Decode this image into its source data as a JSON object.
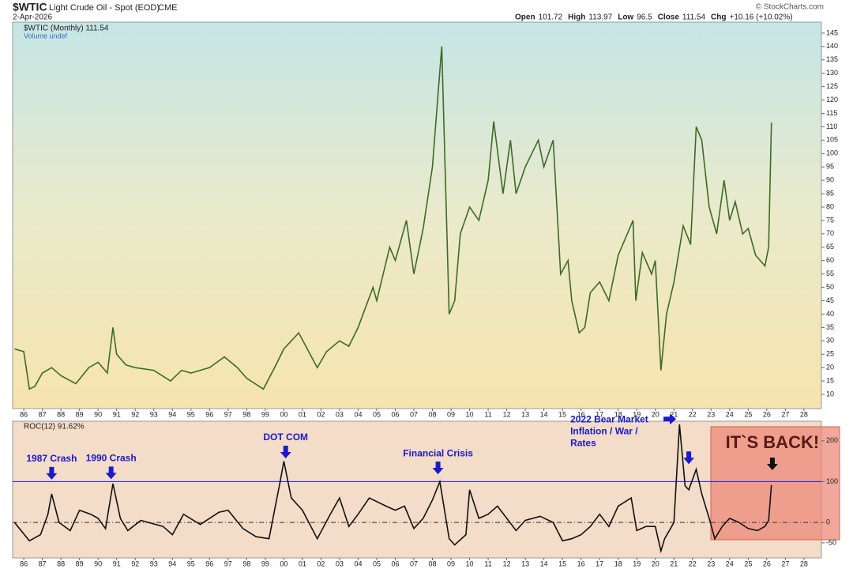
{
  "chart_data": [
    {
      "type": "line",
      "title": "$WTIC",
      "subtitle": "Light Crude Oil - Spot (EOD)",
      "exchange": "CME",
      "date": "2-Apr-2026",
      "source": "© StockCharts.com",
      "quote": [
        {
          "label": "Open",
          "value": 101.72
        },
        {
          "label": "High",
          "value": 113.97
        },
        {
          "label": "Low",
          "value": 96.5
        },
        {
          "label": "Close",
          "value": 111.54
        },
        {
          "label": "Chg",
          "value": "+10.16 (+10.02%)"
        }
      ],
      "legend": [
        "$WTIC (Monthly) 111.54",
        "Volume undef"
      ],
      "color": "#3d6b25",
      "x": [
        1985.5,
        1986.0,
        1986.3,
        1986.6,
        1987.0,
        1987.5,
        1988.0,
        1988.8,
        1989.5,
        1990.0,
        1990.5,
        1990.8,
        1991.0,
        1991.5,
        1992.0,
        1993.0,
        1993.9,
        1994.5,
        1995.0,
        1996.0,
        1996.8,
        1997.5,
        1998.0,
        1998.9,
        1999.5,
        2000.0,
        2000.8,
        2001.8,
        2002.3,
        2003.0,
        2003.5,
        2004.0,
        2004.8,
        2005.0,
        2005.7,
        2006.0,
        2006.6,
        2007.0,
        2007.5,
        2008.0,
        2008.5,
        2008.9,
        2009.2,
        2009.5,
        2010.0,
        2010.5,
        2011.0,
        2011.3,
        2011.8,
        2012.2,
        2012.5,
        2013.0,
        2013.7,
        2014.0,
        2014.5,
        2014.9,
        2015.3,
        2015.5,
        2015.9,
        2016.2,
        2016.5,
        2017.0,
        2017.5,
        2018.0,
        2018.8,
        2018.95,
        2019.3,
        2019.8,
        2020.0,
        2020.3,
        2020.6,
        2021.0,
        2021.5,
        2021.9,
        2022.2,
        2022.5,
        2022.9,
        2023.3,
        2023.7,
        2024.0,
        2024.3,
        2024.7,
        2025.0,
        2025.4,
        2025.9,
        2026.1,
        2026.25
      ],
      "values": [
        27,
        26,
        12,
        13,
        18,
        20,
        17,
        14,
        20,
        22,
        18,
        35,
        25,
        21,
        20,
        19,
        15,
        19,
        18,
        20,
        24,
        20,
        16,
        12,
        20,
        27,
        33,
        20,
        26,
        30,
        28,
        35,
        50,
        45,
        65,
        60,
        75,
        55,
        72,
        95,
        140,
        40,
        45,
        70,
        80,
        75,
        90,
        112,
        85,
        105,
        85,
        95,
        105,
        95,
        105,
        55,
        60,
        45,
        33,
        35,
        48,
        52,
        45,
        62,
        75,
        45,
        63,
        55,
        60,
        19,
        40,
        52,
        73,
        66,
        110,
        105,
        80,
        70,
        90,
        75,
        82,
        70,
        72,
        62,
        58,
        65,
        111.54
      ],
      "xlim": [
        1985.4,
        2028.94
      ],
      "ylim": [
        4.7,
        149.1
      ],
      "yticks": [
        10,
        15,
        20,
        25,
        30,
        35,
        40,
        45,
        50,
        55,
        60,
        65,
        70,
        75,
        80,
        85,
        90,
        95,
        100,
        105,
        110,
        115,
        120,
        125,
        130,
        135,
        140,
        145
      ],
      "xticks": [
        {
          "value": 1986,
          "label": "86"
        },
        {
          "value": 1987,
          "label": "87"
        },
        {
          "value": 1988,
          "label": "88"
        },
        {
          "value": 1989,
          "label": "89"
        },
        {
          "value": 1990,
          "label": "90"
        },
        {
          "value": 1991,
          "label": "91"
        },
        {
          "value": 1992,
          "label": "92"
        },
        {
          "value": 1993,
          "label": "93"
        },
        {
          "value": 1994,
          "label": "94"
        },
        {
          "value": 1995,
          "label": "95"
        },
        {
          "value": 1996,
          "label": "96"
        },
        {
          "value": 1997,
          "label": "97"
        },
        {
          "value": 1998,
          "label": "98"
        },
        {
          "value": 1999,
          "label": "99"
        },
        {
          "value": 2000,
          "label": "00"
        },
        {
          "value": 2001,
          "label": "01"
        },
        {
          "value": 2002,
          "label": "02"
        },
        {
          "value": 2003,
          "label": "03"
        },
        {
          "value": 2004,
          "label": "04"
        },
        {
          "value": 2005,
          "label": "05"
        },
        {
          "value": 2006,
          "label": "06"
        },
        {
          "value": 2007,
          "label": "07"
        },
        {
          "value": 2008,
          "label": "08"
        },
        {
          "value": 2009,
          "label": "09"
        },
        {
          "value": 2010,
          "label": "10"
        },
        {
          "value": 2011,
          "label": "11"
        },
        {
          "value": 2012,
          "label": "12"
        },
        {
          "value": 2013,
          "label": "13"
        },
        {
          "value": 2014,
          "label": "14"
        },
        {
          "value": 2015,
          "label": "15"
        },
        {
          "value": 2016,
          "label": "16"
        },
        {
          "value": 2017,
          "label": "17"
        },
        {
          "value": 2018,
          "label": "18"
        },
        {
          "value": 2019,
          "label": "19"
        },
        {
          "value": 2020,
          "label": "20"
        },
        {
          "value": 2021,
          "label": "21"
        },
        {
          "value": 2022,
          "label": "22"
        },
        {
          "value": 2023,
          "label": "23"
        },
        {
          "value": 2024,
          "label": "24"
        },
        {
          "value": 2025,
          "label": "25"
        },
        {
          "value": 2026,
          "label": "26"
        },
        {
          "value": 2027,
          "label": "27"
        },
        {
          "value": 2028,
          "label": "28"
        }
      ]
    },
    {
      "type": "line",
      "legend": [
        "ROC(12) 91.62%"
      ],
      "color": "#111111",
      "x": [
        1985.5,
        1986.3,
        1986.9,
        1987.3,
        1987.5,
        1987.9,
        1988.5,
        1989.0,
        1989.6,
        1990.0,
        1990.4,
        1990.8,
        1991.2,
        1991.6,
        1992.3,
        1993.5,
        1994.0,
        1994.6,
        1995.5,
        1996.5,
        1997.0,
        1997.8,
        1998.5,
        1999.2,
        1999.8,
        2000.0,
        2000.4,
        2001.0,
        2001.8,
        2002.5,
        2003.0,
        2003.5,
        2004.0,
        2004.6,
        2005.5,
        2006.0,
        2006.5,
        2007.0,
        2007.5,
        2008.0,
        2008.4,
        2008.9,
        2009.2,
        2009.8,
        2010.0,
        2010.5,
        2011.0,
        2011.5,
        2012.0,
        2012.5,
        2013.0,
        2013.8,
        2014.5,
        2015.0,
        2015.5,
        2016.0,
        2016.5,
        2017.0,
        2017.5,
        2018.0,
        2018.7,
        2019.0,
        2019.5,
        2020.0,
        2020.3,
        2020.5,
        2021.0,
        2021.3,
        2021.6,
        2021.8,
        2022.2,
        2022.5,
        2022.9,
        2023.2,
        2023.6,
        2024.0,
        2024.5,
        2025.0,
        2025.5,
        2025.9,
        2026.1,
        2026.25
      ],
      "values": [
        0,
        -45,
        -30,
        20,
        70,
        0,
        -20,
        30,
        20,
        10,
        -15,
        95,
        10,
        -20,
        5,
        -10,
        -30,
        20,
        -5,
        25,
        30,
        -15,
        -35,
        -40,
        100,
        150,
        60,
        30,
        -40,
        20,
        60,
        -10,
        20,
        60,
        40,
        30,
        40,
        -15,
        10,
        55,
        100,
        -40,
        -55,
        -30,
        80,
        10,
        20,
        40,
        10,
        -20,
        5,
        15,
        0,
        -45,
        -40,
        -30,
        -10,
        20,
        -10,
        40,
        60,
        -20,
        -10,
        -10,
        -70,
        -40,
        0,
        240,
        90,
        80,
        130,
        70,
        10,
        -40,
        -10,
        10,
        0,
        -15,
        -20,
        -10,
        5,
        91.62
      ],
      "xlim": [
        1985.4,
        2028.94
      ],
      "ylim": [
        -87,
        248
      ],
      "yticks": [
        -50,
        0,
        100,
        200
      ],
      "hline": 100,
      "zero_line": 0,
      "annotations": [
        {
          "lines": [
            "1987 Crash"
          ],
          "x": 1987.5,
          "y": 105,
          "color": "#1a1acc"
        },
        {
          "lines": [
            "1990 Crash"
          ],
          "x": 1990.7,
          "y": 106,
          "color": "#1a1acc"
        },
        {
          "lines": [
            "DOT COM"
          ],
          "x": 2000.1,
          "y": 157,
          "color": "#1a1acc"
        },
        {
          "lines": [
            "Financial Crisis"
          ],
          "x": 2008.3,
          "y": 118,
          "color": "#1a1acc"
        },
        {
          "lines": [
            "2022 Bear Market",
            "Inflation / War /",
            "Rates"
          ],
          "x": 2021.8,
          "y": 143,
          "color": "#1a1acc"
        },
        {
          "lines": [
            "IT`S BACK!"
          ],
          "x": 2026.3,
          "y": 128,
          "color": "#111111"
        }
      ],
      "xticks": [
        {
          "value": 1986,
          "label": "86"
        },
        {
          "value": 1987,
          "label": "87"
        },
        {
          "value": 1988,
          "label": "88"
        },
        {
          "value": 1989,
          "label": "89"
        },
        {
          "value": 1990,
          "label": "90"
        },
        {
          "value": 1991,
          "label": "91"
        },
        {
          "value": 1992,
          "label": "92"
        },
        {
          "value": 1993,
          "label": "93"
        },
        {
          "value": 1994,
          "label": "94"
        },
        {
          "value": 1995,
          "label": "95"
        },
        {
          "value": 1996,
          "label": "96"
        },
        {
          "value": 1997,
          "label": "97"
        },
        {
          "value": 1998,
          "label": "98"
        },
        {
          "value": 1999,
          "label": "99"
        },
        {
          "value": 2000,
          "label": "00"
        },
        {
          "value": 2001,
          "label": "01"
        },
        {
          "value": 2002,
          "label": "02"
        },
        {
          "value": 2003,
          "label": "03"
        },
        {
          "value": 2004,
          "label": "04"
        },
        {
          "value": 2005,
          "label": "05"
        },
        {
          "value": 2006,
          "label": "06"
        },
        {
          "value": 2007,
          "label": "07"
        },
        {
          "value": 2008,
          "label": "08"
        },
        {
          "value": 2009,
          "label": "09"
        },
        {
          "value": 2010,
          "label": "10"
        },
        {
          "value": 2011,
          "label": "11"
        },
        {
          "value": 2012,
          "label": "12"
        },
        {
          "value": 2013,
          "label": "13"
        },
        {
          "value": 2014,
          "label": "14"
        },
        {
          "value": 2015,
          "label": "15"
        },
        {
          "value": 2016,
          "label": "16"
        },
        {
          "value": 2017,
          "label": "17"
        },
        {
          "value": 2018,
          "label": "18"
        },
        {
          "value": 2019,
          "label": "19"
        },
        {
          "value": 2020,
          "label": "20"
        },
        {
          "value": 2021,
          "label": "21"
        },
        {
          "value": 2022,
          "label": "22"
        },
        {
          "value": 2023,
          "label": "23"
        },
        {
          "value": 2024,
          "label": "24"
        },
        {
          "value": 2025,
          "label": "25"
        },
        {
          "value": 2026,
          "label": "26"
        },
        {
          "value": 2027,
          "label": "27"
        },
        {
          "value": 2028,
          "label": "28"
        }
      ]
    }
  ]
}
